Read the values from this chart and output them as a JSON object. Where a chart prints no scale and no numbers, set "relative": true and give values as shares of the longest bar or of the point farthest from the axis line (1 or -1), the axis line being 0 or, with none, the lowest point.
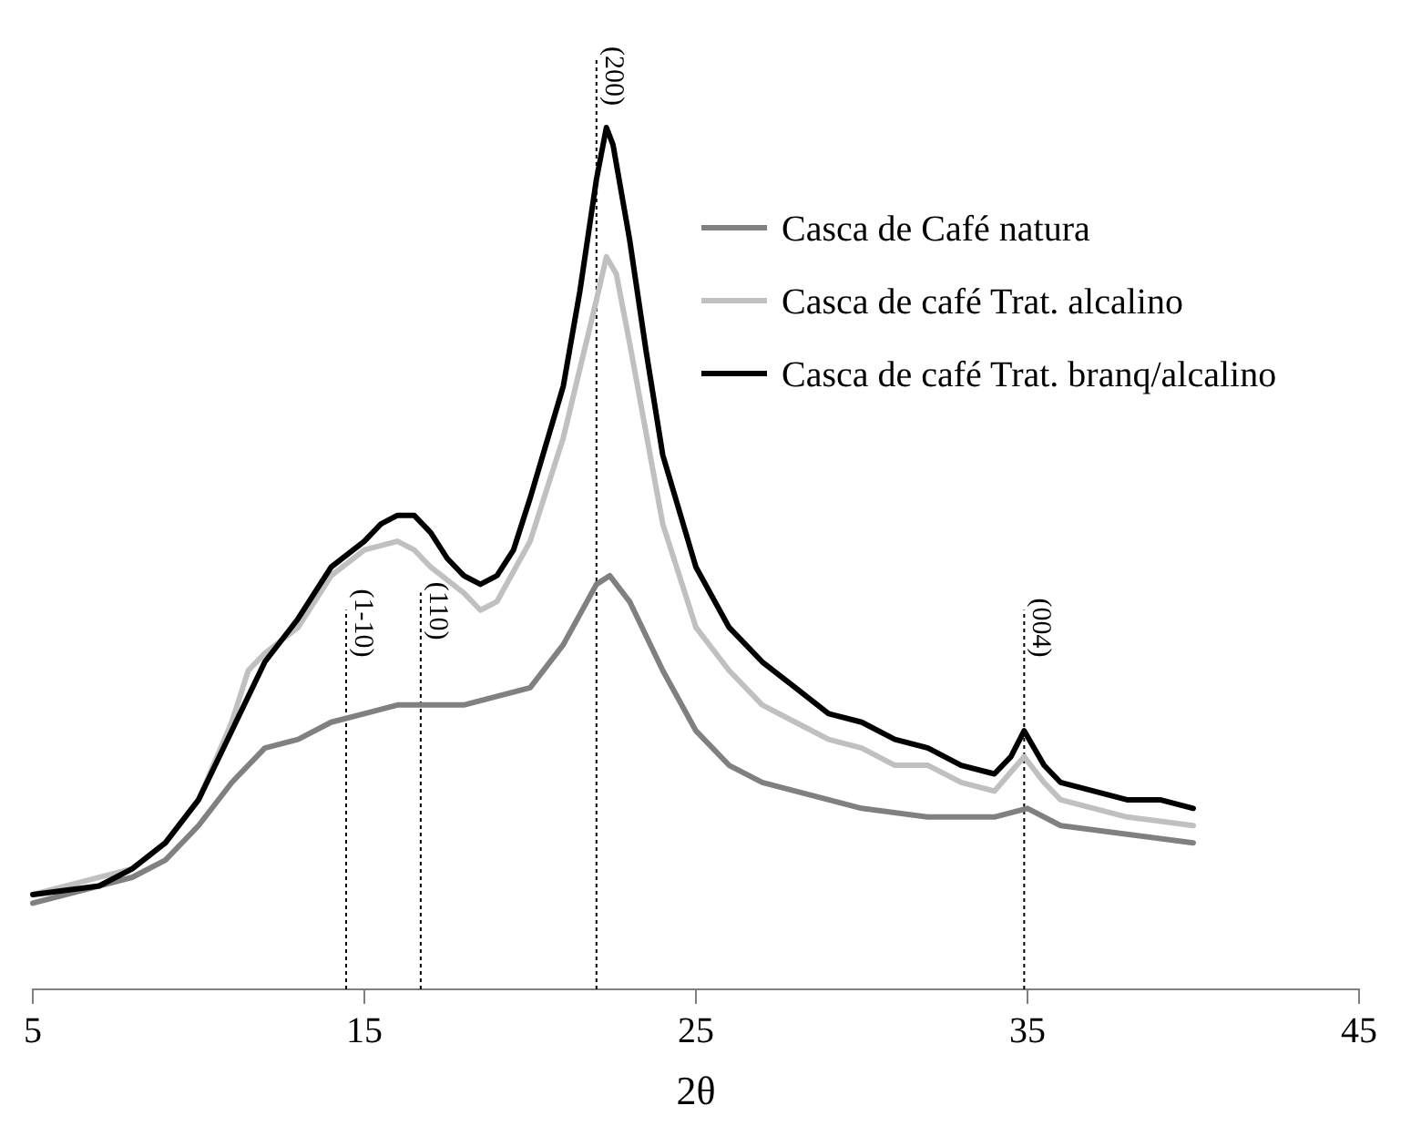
{
  "chart_data": {
    "type": "line",
    "xlabel": "2θ",
    "relative": true,
    "xlim": [
      5,
      45
    ],
    "xticks": [
      5,
      15,
      25,
      35,
      45
    ],
    "grid": false,
    "legend": "top right",
    "marker": "none",
    "line_style": "solid",
    "tick_labels": "x",
    "ref_lines": [
      {
        "axis": "x",
        "value": 14.45,
        "line_style": "dotted",
        "color": "#000000"
      },
      {
        "axis": "x",
        "value": 16.7,
        "line_style": "dotted",
        "color": "#000000"
      },
      {
        "axis": "x",
        "value": 22.0,
        "line_style": "dotted",
        "color": "#000000"
      },
      {
        "axis": "x",
        "value": 34.9,
        "line_style": "dotted",
        "color": "#000000"
      }
    ],
    "annotations": [
      {
        "text": "(1-10)",
        "x": 14.45,
        "y": 0.36
      },
      {
        "text": "(110)",
        "x": 16.7,
        "y": 0.38
      },
      {
        "text": "(200)",
        "x": 22.0,
        "y": 1.0
      },
      {
        "text": "(004)",
        "x": 34.9,
        "y": 0.36
      }
    ],
    "series": [
      {
        "name": "Casca de Café natura",
        "color": "#808080",
        "x": [
          5,
          8,
          9,
          10,
          11,
          12,
          13,
          14,
          15,
          16,
          17,
          18,
          19,
          20,
          21,
          22,
          22.4,
          23,
          24,
          25,
          26,
          27,
          28,
          29,
          30,
          32,
          34,
          35,
          36,
          38,
          40
        ],
        "values": [
          0.1,
          0.13,
          0.15,
          0.19,
          0.24,
          0.28,
          0.29,
          0.31,
          0.32,
          0.33,
          0.33,
          0.33,
          0.34,
          0.35,
          0.4,
          0.47,
          0.48,
          0.45,
          0.37,
          0.3,
          0.26,
          0.24,
          0.23,
          0.22,
          0.21,
          0.2,
          0.2,
          0.21,
          0.19,
          0.18,
          0.17
        ]
      },
      {
        "name": "Casca de café Trat. alcalino",
        "color": "#c0c0c0",
        "x": [
          5,
          8,
          9,
          10,
          11,
          11.5,
          12,
          13,
          14,
          15,
          16,
          16.5,
          17,
          18,
          18.5,
          19,
          20,
          21,
          22,
          22.3,
          22.6,
          23,
          24,
          25,
          26,
          27,
          28,
          29,
          30,
          31,
          32,
          33,
          34,
          34.9,
          35.5,
          36,
          38,
          40
        ],
        "values": [
          0.11,
          0.14,
          0.17,
          0.22,
          0.31,
          0.37,
          0.39,
          0.42,
          0.48,
          0.51,
          0.52,
          0.51,
          0.49,
          0.46,
          0.44,
          0.45,
          0.52,
          0.64,
          0.8,
          0.85,
          0.83,
          0.75,
          0.54,
          0.42,
          0.37,
          0.33,
          0.31,
          0.29,
          0.28,
          0.26,
          0.26,
          0.24,
          0.23,
          0.27,
          0.24,
          0.22,
          0.2,
          0.19
        ]
      },
      {
        "name": "Casca de café Trat. branq/alcalino",
        "color": "#000000",
        "x": [
          5,
          7,
          8,
          9,
          10,
          11,
          12,
          13,
          14,
          15,
          15.5,
          16,
          16.5,
          17,
          17.5,
          18,
          18.5,
          19,
          19.5,
          20,
          21,
          21.5,
          22,
          22.3,
          22.5,
          23,
          23.5,
          24,
          25,
          26,
          27,
          28,
          29,
          30,
          31,
          32,
          33,
          34,
          34.5,
          34.9,
          35.5,
          36,
          37,
          38,
          39,
          40
        ],
        "values": [
          0.11,
          0.12,
          0.14,
          0.17,
          0.22,
          0.3,
          0.38,
          0.43,
          0.49,
          0.52,
          0.54,
          0.55,
          0.55,
          0.53,
          0.5,
          0.48,
          0.47,
          0.48,
          0.51,
          0.57,
          0.7,
          0.81,
          0.94,
          1.0,
          0.98,
          0.87,
          0.74,
          0.62,
          0.49,
          0.42,
          0.38,
          0.35,
          0.32,
          0.31,
          0.29,
          0.28,
          0.26,
          0.25,
          0.27,
          0.3,
          0.26,
          0.24,
          0.23,
          0.22,
          0.22,
          0.21
        ]
      }
    ]
  }
}
